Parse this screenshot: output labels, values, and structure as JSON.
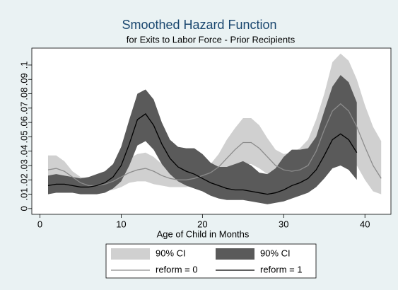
{
  "chart_data": {
    "type": "band-line",
    "title": "Smoothed Hazard Function",
    "subtitle": "for Exits to Labor Force - Prior Recipients",
    "x_label": "Age of Child in Months",
    "xlim": [
      -1,
      43.2
    ],
    "xticks": [
      0,
      10,
      20,
      30,
      40
    ],
    "ylim": [
      -0.004,
      0.1118
    ],
    "yticks": [
      0,
      {
        "value": 0.01,
        "label": ".01"
      },
      {
        "value": 0.02,
        "label": ".02"
      },
      {
        "value": 0.03,
        "label": ".03"
      },
      {
        "value": 0.04,
        "label": ".04"
      },
      {
        "value": 0.05,
        "label": ".05"
      },
      {
        "value": 0.06,
        "label": ".06"
      },
      {
        "value": 0.07,
        "label": ".07"
      },
      {
        "value": 0.08,
        "label": ".08"
      },
      {
        "value": 0.09,
        "label": ".09"
      },
      {
        "value": 0.1,
        "label": ".1"
      }
    ],
    "grid": false,
    "legend": "bottom",
    "series": [
      {
        "name": "90% CI",
        "kind": "band",
        "color": "#d0d0d0",
        "x": [
          1,
          2,
          3,
          4,
          5,
          6,
          7,
          8,
          9,
          10,
          11,
          12,
          13,
          14,
          15,
          16,
          17,
          18,
          19,
          20,
          21,
          22,
          23,
          24,
          25,
          26,
          27,
          28,
          29,
          30,
          31,
          32,
          33,
          34,
          35,
          36,
          37,
          38,
          39,
          40,
          41,
          42
        ],
        "upper": [
          0.037,
          0.037,
          0.033,
          0.026,
          0.022,
          0.021,
          0.021,
          0.023,
          0.026,
          0.031,
          0.035,
          0.038,
          0.039,
          0.036,
          0.031,
          0.027,
          0.025,
          0.024,
          0.025,
          0.027,
          0.031,
          0.038,
          0.048,
          0.056,
          0.063,
          0.063,
          0.058,
          0.049,
          0.041,
          0.038,
          0.039,
          0.042,
          0.048,
          0.062,
          0.08,
          0.102,
          0.108,
          0.103,
          0.09,
          0.072,
          0.057,
          0.047
        ],
        "lower": [
          0.017,
          0.018,
          0.018,
          0.016,
          0.013,
          0.012,
          0.012,
          0.012,
          0.013,
          0.015,
          0.018,
          0.019,
          0.019,
          0.017,
          0.016,
          0.015,
          0.015,
          0.015,
          0.016,
          0.018,
          0.02,
          0.022,
          0.025,
          0.029,
          0.031,
          0.031,
          0.028,
          0.024,
          0.02,
          0.017,
          0.016,
          0.016,
          0.018,
          0.024,
          0.033,
          0.04,
          0.043,
          0.039,
          0.03,
          0.02,
          0.012,
          0.01
        ]
      },
      {
        "name": "90% CI",
        "kind": "band",
        "color": "#5a5a5a",
        "x": [
          1,
          2,
          3,
          4,
          5,
          6,
          7,
          8,
          9,
          10,
          11,
          12,
          13,
          14,
          15,
          16,
          17,
          18,
          19,
          20,
          21,
          22,
          23,
          24,
          25,
          26,
          27,
          28,
          29,
          30,
          31,
          32,
          33,
          34,
          35,
          36,
          37,
          38,
          39
        ],
        "upper": [
          0.023,
          0.024,
          0.023,
          0.022,
          0.021,
          0.022,
          0.024,
          0.026,
          0.031,
          0.043,
          0.062,
          0.08,
          0.083,
          0.076,
          0.06,
          0.048,
          0.043,
          0.042,
          0.042,
          0.038,
          0.032,
          0.029,
          0.029,
          0.031,
          0.033,
          0.03,
          0.025,
          0.024,
          0.028,
          0.036,
          0.041,
          0.041,
          0.042,
          0.05,
          0.068,
          0.085,
          0.093,
          0.088,
          0.074
        ],
        "lower": [
          0.01,
          0.011,
          0.011,
          0.011,
          0.01,
          0.01,
          0.01,
          0.011,
          0.014,
          0.019,
          0.03,
          0.044,
          0.047,
          0.041,
          0.031,
          0.024,
          0.019,
          0.016,
          0.014,
          0.012,
          0.009,
          0.007,
          0.006,
          0.006,
          0.006,
          0.005,
          0.004,
          0.003,
          0.004,
          0.005,
          0.007,
          0.009,
          0.011,
          0.015,
          0.021,
          0.028,
          0.03,
          0.027,
          0.02
        ]
      },
      {
        "name": "reform = 0",
        "kind": "line",
        "color": "#8c8c8c",
        "x": [
          1,
          2,
          3,
          4,
          5,
          6,
          7,
          8,
          9,
          10,
          11,
          12,
          13,
          14,
          15,
          16,
          17,
          18,
          19,
          20,
          21,
          22,
          23,
          24,
          25,
          26,
          27,
          28,
          29,
          30,
          31,
          32,
          33,
          34,
          35,
          36,
          37,
          38,
          39,
          40,
          41,
          42
        ],
        "values": [
          0.027,
          0.028,
          0.026,
          0.022,
          0.018,
          0.016,
          0.016,
          0.017,
          0.019,
          0.022,
          0.025,
          0.027,
          0.028,
          0.026,
          0.023,
          0.021,
          0.02,
          0.02,
          0.021,
          0.023,
          0.025,
          0.029,
          0.035,
          0.041,
          0.046,
          0.046,
          0.042,
          0.036,
          0.03,
          0.027,
          0.026,
          0.027,
          0.03,
          0.04,
          0.055,
          0.068,
          0.073,
          0.068,
          0.057,
          0.043,
          0.03,
          0.021
        ]
      },
      {
        "name": "reform = 1",
        "kind": "line",
        "color": "#000000",
        "x": [
          1,
          2,
          3,
          4,
          5,
          6,
          7,
          8,
          9,
          10,
          11,
          12,
          13,
          14,
          15,
          16,
          17,
          18,
          19,
          20,
          21,
          22,
          23,
          24,
          25,
          26,
          27,
          28,
          29,
          30,
          31,
          32,
          33,
          34,
          35,
          36,
          37,
          38,
          39
        ],
        "values": [
          0.016,
          0.017,
          0.017,
          0.016,
          0.015,
          0.015,
          0.016,
          0.018,
          0.022,
          0.03,
          0.045,
          0.062,
          0.066,
          0.058,
          0.045,
          0.035,
          0.029,
          0.026,
          0.024,
          0.021,
          0.018,
          0.016,
          0.014,
          0.013,
          0.013,
          0.012,
          0.011,
          0.01,
          0.011,
          0.013,
          0.016,
          0.018,
          0.021,
          0.027,
          0.037,
          0.048,
          0.052,
          0.048,
          0.039
        ]
      }
    ]
  }
}
